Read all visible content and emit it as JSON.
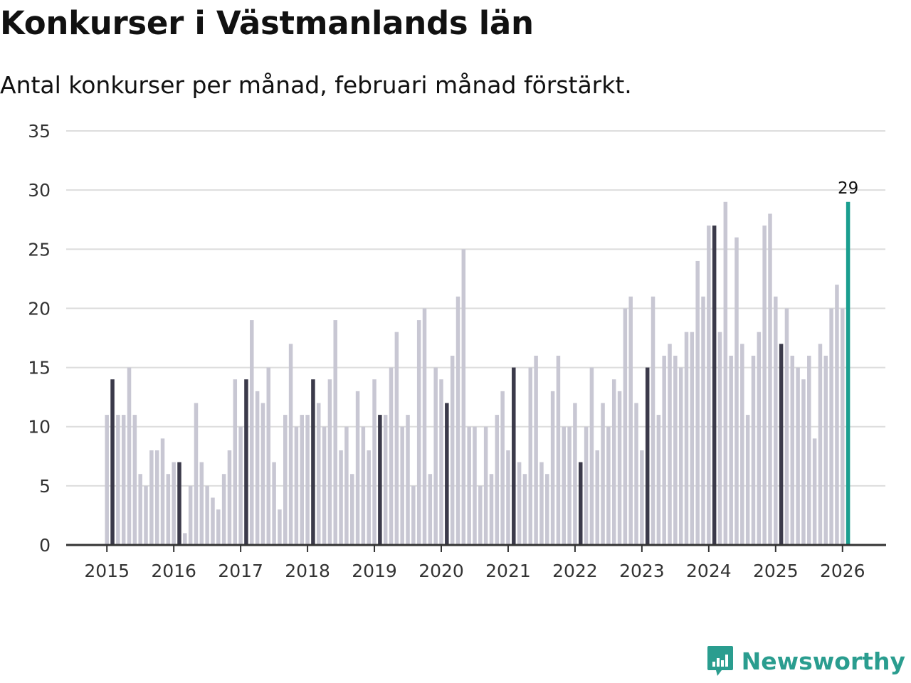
{
  "title": "Konkurser i Västmanlands län",
  "subtitle": "Antal konkurser per månad, februari månad förstärkt.",
  "brand": "Newsworthy",
  "colors": {
    "bar": "#c8c7d3",
    "highlight": "#3b3a4a",
    "latest": "#1a9e8f",
    "grid": "#dddddd",
    "axis": "#333333",
    "brand": "#2a9d8f"
  },
  "chart_data": {
    "type": "bar",
    "start": "2015-01",
    "highlight_month": "februari",
    "ylim": [
      0,
      35
    ],
    "yticks": [
      0,
      5,
      10,
      15,
      20,
      25,
      30,
      35
    ],
    "xticks": [
      "2015",
      "2016",
      "2017",
      "2018",
      "2019",
      "2020",
      "2021",
      "2022",
      "2023",
      "2024",
      "2025",
      "2026"
    ],
    "values": [
      11,
      14,
      11,
      11,
      15,
      11,
      6,
      5,
      8,
      8,
      9,
      6,
      7,
      7,
      1,
      5,
      12,
      7,
      5,
      4,
      3,
      6,
      8,
      14,
      10,
      14,
      19,
      13,
      12,
      15,
      7,
      3,
      11,
      17,
      10,
      11,
      11,
      14,
      12,
      10,
      14,
      19,
      8,
      10,
      6,
      13,
      10,
      8,
      14,
      11,
      11,
      15,
      18,
      10,
      11,
      5,
      19,
      20,
      6,
      15,
      14,
      12,
      16,
      21,
      25,
      10,
      10,
      5,
      10,
      6,
      11,
      13,
      8,
      15,
      7,
      6,
      15,
      16,
      7,
      6,
      13,
      16,
      10,
      10,
      12,
      7,
      10,
      15,
      8,
      12,
      10,
      14,
      13,
      20,
      21,
      12,
      8,
      15,
      21,
      11,
      16,
      17,
      16,
      15,
      18,
      18,
      24,
      21,
      27,
      27,
      18,
      29,
      16,
      26,
      17,
      11,
      16,
      18,
      27,
      28,
      21,
      17,
      20,
      16,
      15,
      14,
      16,
      9,
      17,
      16,
      20,
      22,
      20,
      29
    ],
    "annotation": {
      "index": 133,
      "label": "29"
    }
  }
}
